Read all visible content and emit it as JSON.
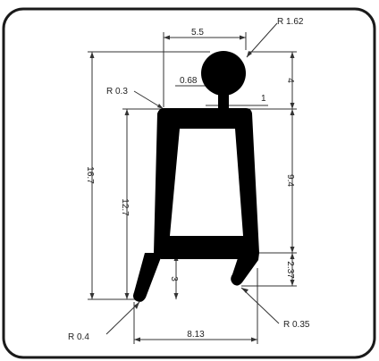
{
  "drawing": {
    "frame_color": "#1a1a1a",
    "profile_color": "#000000",
    "dimension_color": "#333333",
    "background_color": "#ffffff",
    "labels": {
      "top_width": "5.5",
      "bulb_radius": "R 1.62",
      "neck_width": "0.68",
      "neck_height": "1",
      "top_corner_radius": "R 0.3",
      "bulb_height": "4",
      "overall_height": "16.7",
      "body_height": "12.7",
      "upper_right_height": "9.4",
      "lower_right_height": "2.37",
      "left_leg_height": "3",
      "bottom_width": "8.13",
      "left_foot_radius": "R 0.4",
      "right_foot_radius": "R 0.35"
    }
  }
}
